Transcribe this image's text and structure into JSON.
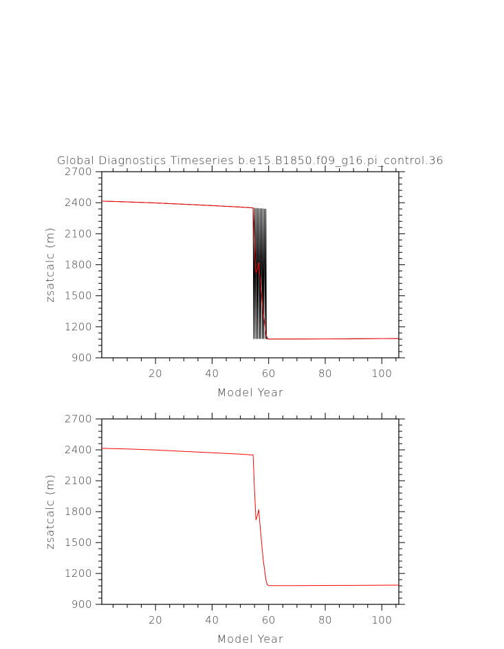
{
  "figure_title": "Global Diagnostics Timeseries b.e15.B1850.f09_g16.pi_control.36",
  "chart_data": [
    {
      "type": "line",
      "title": "Global Diagnostics Timeseries b.e15.B1850.f09_g16.pi_control.36",
      "xlabel": "Model Year",
      "ylabel": "zsatcalc (m)",
      "xlim": [
        1,
        106
      ],
      "ylim": [
        900,
        2700
      ],
      "x_ticks": [
        20,
        40,
        60,
        80,
        100
      ],
      "y_ticks": [
        900,
        1200,
        1500,
        1800,
        2100,
        2400,
        2700
      ],
      "grid": false,
      "legend": "none",
      "series": [
        {
          "color": "#000000",
          "x": [
            1,
            5,
            10,
            20,
            30,
            40,
            50,
            54.5,
            54.7,
            55.0,
            55.2,
            55.5,
            55.8,
            56.0,
            56.2,
            56.5,
            56.8,
            57.0,
            57.2,
            57.5,
            57.8,
            58.0,
            58.2,
            58.5,
            58.8,
            59.0,
            59.2,
            60,
            70,
            80,
            90,
            100,
            106
          ],
          "y": [
            2415,
            2412,
            2408,
            2398,
            2385,
            2372,
            2358,
            2350,
            1085,
            2348,
            1085,
            2346,
            1085,
            2345,
            1085,
            2344,
            1085,
            2343,
            1085,
            2342,
            1085,
            2341,
            1085,
            2340,
            1085,
            2339,
            1085,
            1082,
            1082,
            1083,
            1084,
            1086,
            1087
          ]
        },
        {
          "color": "#ff0000",
          "x": [
            1,
            5,
            10,
            20,
            30,
            40,
            50,
            54.5,
            55,
            55.5,
            56,
            56.5,
            57,
            58,
            59,
            59.5,
            60,
            70,
            80,
            90,
            100,
            106
          ],
          "y": [
            2415,
            2412,
            2408,
            2398,
            2385,
            2372,
            2358,
            2350,
            2010,
            1720,
            1760,
            1820,
            1650,
            1350,
            1140,
            1090,
            1082,
            1082,
            1083,
            1084,
            1086,
            1087
          ]
        }
      ]
    },
    {
      "type": "line",
      "title": "",
      "xlabel": "Model Year",
      "ylabel": "zsatcalc (m)",
      "xlim": [
        1,
        106
      ],
      "ylim": [
        900,
        2700
      ],
      "x_ticks": [
        20,
        40,
        60,
        80,
        100
      ],
      "y_ticks": [
        900,
        1200,
        1500,
        1800,
        2100,
        2400,
        2700
      ],
      "grid": false,
      "legend": "none",
      "series": [
        {
          "color": "#ff0000",
          "x": [
            1,
            5,
            10,
            20,
            30,
            40,
            50,
            54.5,
            55,
            55.5,
            56,
            56.5,
            57,
            58,
            59,
            59.5,
            60,
            70,
            80,
            90,
            100,
            106
          ],
          "y": [
            2415,
            2412,
            2408,
            2398,
            2385,
            2372,
            2358,
            2350,
            2010,
            1720,
            1760,
            1820,
            1650,
            1350,
            1140,
            1090,
            1082,
            1082,
            1083,
            1084,
            1086,
            1087
          ]
        }
      ]
    }
  ]
}
